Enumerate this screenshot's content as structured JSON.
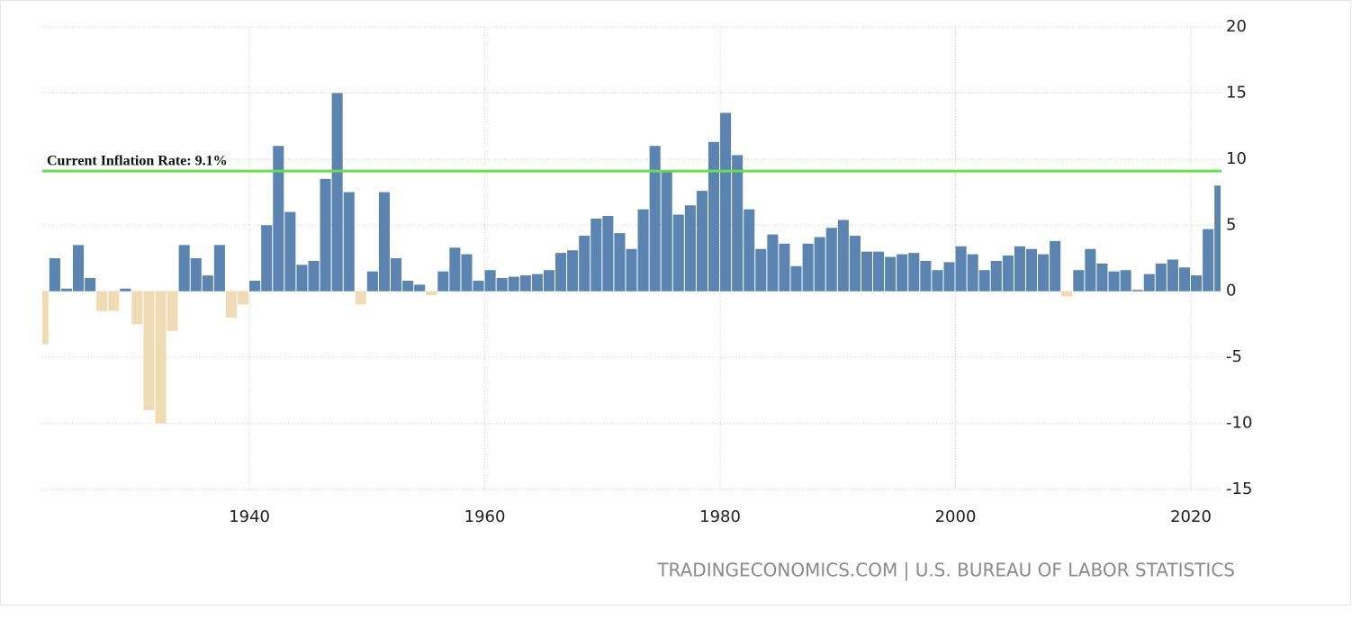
{
  "chart_data": {
    "type": "bar",
    "x": [
      1922,
      1923,
      1924,
      1925,
      1926,
      1927,
      1928,
      1929,
      1930,
      1931,
      1932,
      1933,
      1934,
      1935,
      1936,
      1937,
      1938,
      1939,
      1940,
      1941,
      1942,
      1943,
      1944,
      1945,
      1946,
      1947,
      1948,
      1949,
      1950,
      1951,
      1952,
      1953,
      1954,
      1955,
      1956,
      1957,
      1958,
      1959,
      1960,
      1961,
      1962,
      1963,
      1964,
      1965,
      1966,
      1967,
      1968,
      1969,
      1970,
      1971,
      1972,
      1973,
      1974,
      1975,
      1976,
      1977,
      1978,
      1979,
      1980,
      1981,
      1982,
      1983,
      1984,
      1985,
      1986,
      1987,
      1988,
      1989,
      1990,
      1991,
      1992,
      1993,
      1994,
      1995,
      1996,
      1997,
      1998,
      1999,
      2000,
      2001,
      2002,
      2003,
      2004,
      2005,
      2006,
      2007,
      2008,
      2009,
      2010,
      2011,
      2012,
      2013,
      2014,
      2015,
      2016,
      2017,
      2018,
      2019,
      2020,
      2021,
      2022
    ],
    "values": [
      -4,
      2.5,
      0.2,
      3.5,
      1.0,
      -1.5,
      -1.5,
      0.2,
      -2.5,
      -9,
      -10,
      -3,
      3.5,
      2.5,
      1.2,
      3.5,
      -2,
      -1,
      0.8,
      5,
      11,
      6,
      2,
      2.3,
      8.5,
      15,
      7.5,
      -1,
      1.5,
      7.5,
      2.5,
      0.8,
      0.5,
      -0.3,
      1.5,
      3.3,
      2.8,
      0.8,
      1.6,
      1.0,
      1.1,
      1.2,
      1.3,
      1.6,
      2.9,
      3.1,
      4.2,
      5.5,
      5.7,
      4.4,
      3.2,
      6.2,
      11,
      9.1,
      5.8,
      6.5,
      7.6,
      11.3,
      13.5,
      10.3,
      6.2,
      3.2,
      4.3,
      3.6,
      1.9,
      3.6,
      4.1,
      4.8,
      5.4,
      4.2,
      3.0,
      3.0,
      2.6,
      2.8,
      2.9,
      2.3,
      1.6,
      2.2,
      3.4,
      2.8,
      1.6,
      2.3,
      2.7,
      3.4,
      3.2,
      2.8,
      3.8,
      -0.4,
      1.6,
      3.2,
      2.1,
      1.5,
      1.6,
      0.1,
      1.3,
      2.1,
      2.4,
      1.8,
      1.2,
      4.7,
      8.0
    ],
    "positive_color": "#5b84b1",
    "negative_color": "#f0dcb4",
    "xlim": [
      1922.4,
      2022.6
    ],
    "xticks": [
      1940,
      1960,
      1980,
      2000,
      2020
    ],
    "ylim": [
      -15,
      20
    ],
    "yticks": [
      -15,
      -10,
      -5,
      0,
      5,
      10,
      15,
      20
    ],
    "grid": true,
    "reference_line": {
      "value": 9.1,
      "label": "Current Inflation Rate: 9.1%",
      "color": "#66e04a"
    },
    "source": "TRADINGECONOMICS.COM | U.S. BUREAU OF LABOR STATISTICS"
  }
}
